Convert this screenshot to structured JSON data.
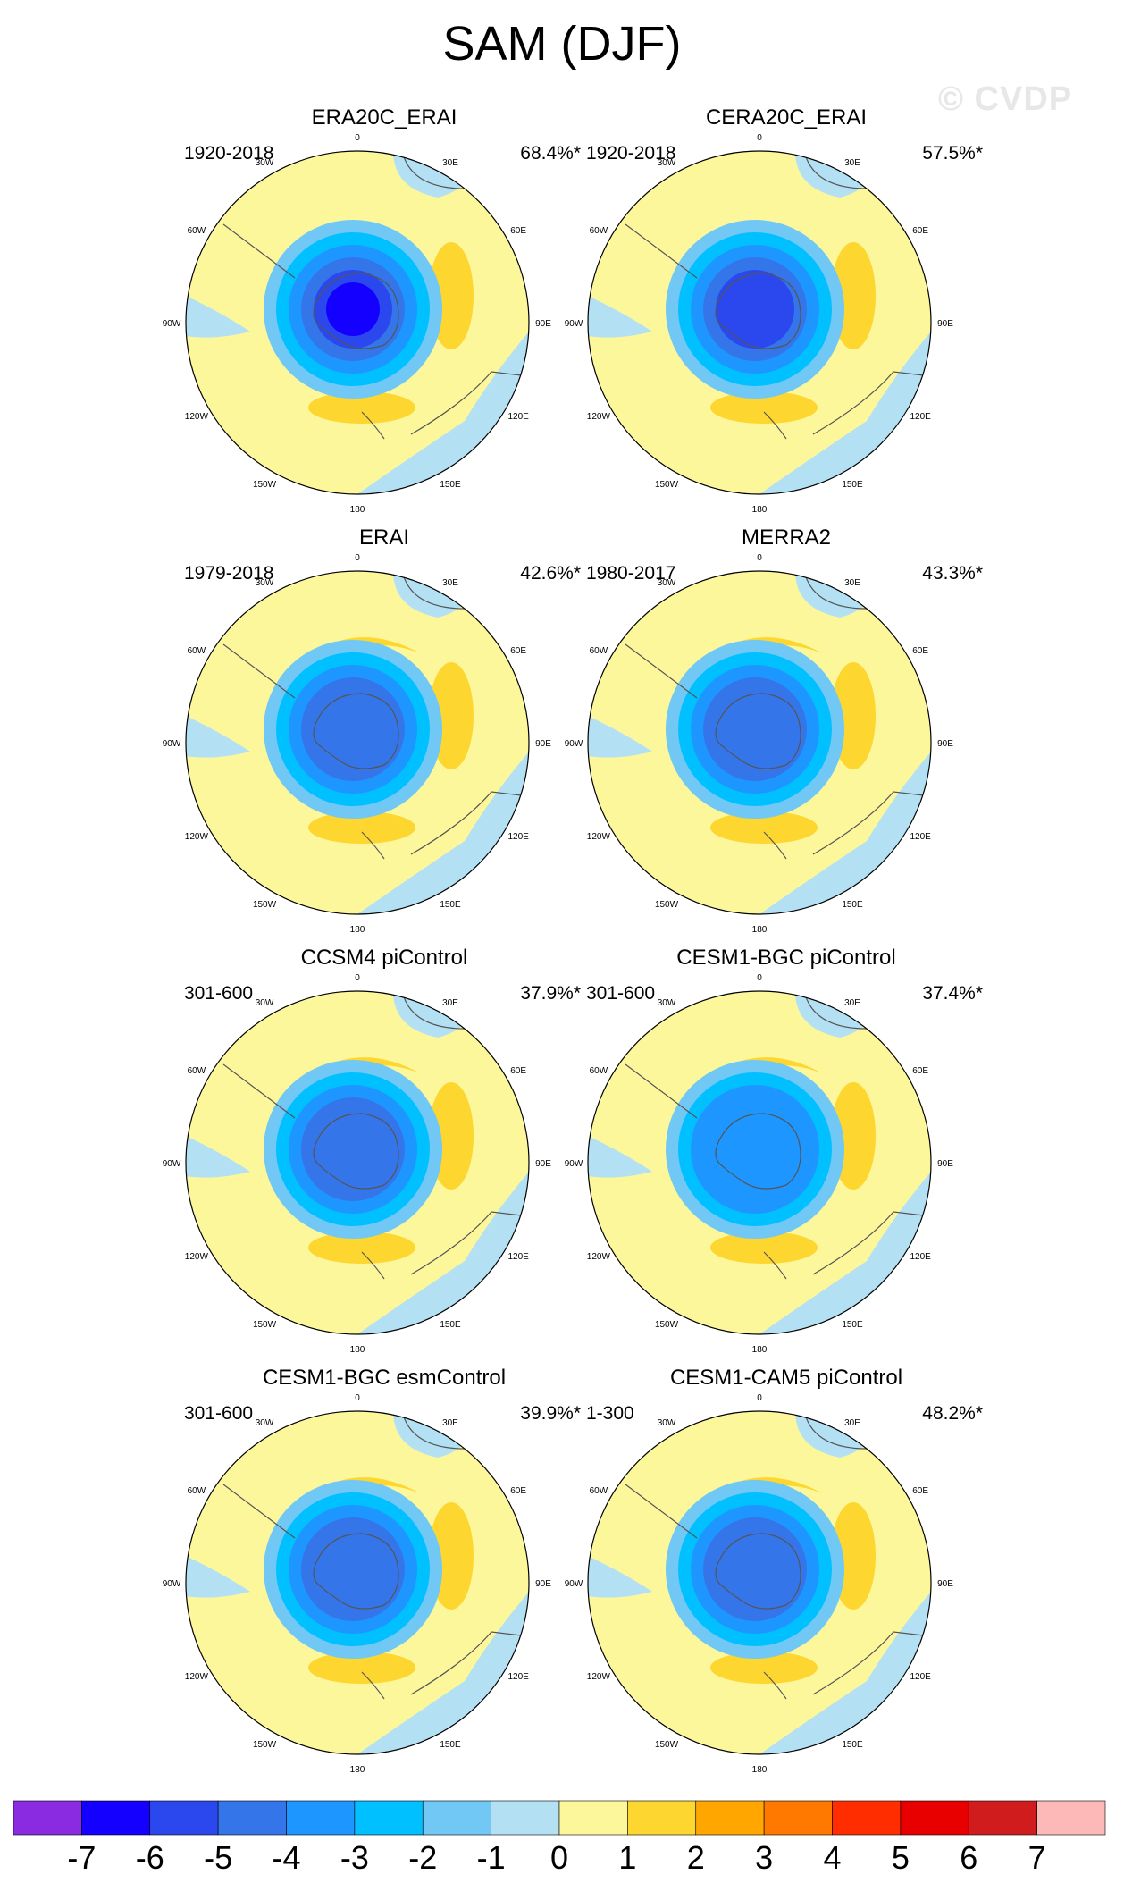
{
  "figure": {
    "title": "SAM (DJF)",
    "watermark": "© CVDP"
  },
  "panels": [
    {
      "name": "ERA20C_ERAI",
      "period": "1920-2018",
      "variance": "68.4%*",
      "center_level": -6,
      "low_bands": [
        -1,
        -2,
        -3,
        -4,
        -5,
        -6
      ]
    },
    {
      "name": "CERA20C_ERAI",
      "period": "1920-2018",
      "variance": "57.5%*",
      "center_level": -5,
      "low_bands": [
        -1,
        -2,
        -3,
        -4,
        -5
      ]
    },
    {
      "name": "ERAI",
      "period": "1979-2018",
      "variance": "42.6%*",
      "center_level": -4,
      "low_bands": [
        -1,
        -2,
        -3,
        -4
      ]
    },
    {
      "name": "MERRA2",
      "period": "1980-2017",
      "variance": "43.3%*",
      "center_level": -4,
      "low_bands": [
        -1,
        -2,
        -3,
        -4
      ]
    },
    {
      "name": "CCSM4 piControl",
      "period": "301-600",
      "variance": "37.9%*",
      "center_level": -4,
      "low_bands": [
        -1,
        -2,
        -3,
        -4
      ]
    },
    {
      "name": "CESM1-BGC piControl",
      "period": "301-600",
      "variance": "37.4%*",
      "center_level": -3,
      "low_bands": [
        -1,
        -2,
        -3
      ]
    },
    {
      "name": "CESM1-BGC esmControl",
      "period": "301-600",
      "variance": "39.9%*",
      "center_level": -4,
      "low_bands": [
        -1,
        -2,
        -3,
        -4
      ]
    },
    {
      "name": "CESM1-CAM5 piControl",
      "period": "1-300",
      "variance": "48.2%*",
      "center_level": -4,
      "low_bands": [
        -1,
        -2,
        -3,
        -4
      ]
    }
  ],
  "longitude_labels": [
    "0",
    "30E",
    "60E",
    "90E",
    "120E",
    "150E",
    "180",
    "150W",
    "120W",
    "90W",
    "60W",
    "30W"
  ],
  "colorbar": {
    "labels": [
      "-7",
      "-6",
      "-5",
      "-4",
      "-3",
      "-2",
      "-1",
      "0",
      "1",
      "2",
      "3",
      "4",
      "5",
      "6",
      "7"
    ],
    "colors": [
      "#8a2be2",
      "#1400ff",
      "#2a48ee",
      "#3476ea",
      "#1e96ff",
      "#00c0ff",
      "#72c8f4",
      "#b4e0f4",
      "#fdf79c",
      "#fdd630",
      "#ffa700",
      "#ff7800",
      "#ff2d00",
      "#e80000",
      "#d01c1c",
      "#fdb8b8"
    ],
    "band_colors": {
      "-7": "#8a2be2",
      "-6": "#1400ff",
      "-5": "#2a48ee",
      "-4": "#3476ea",
      "-3": "#1e96ff",
      "-2": "#00c0ff",
      "-1": "#72c8f4",
      "0": "#b4e0f4",
      "1": "#fdf79c",
      "2": "#fdd630"
    }
  }
}
